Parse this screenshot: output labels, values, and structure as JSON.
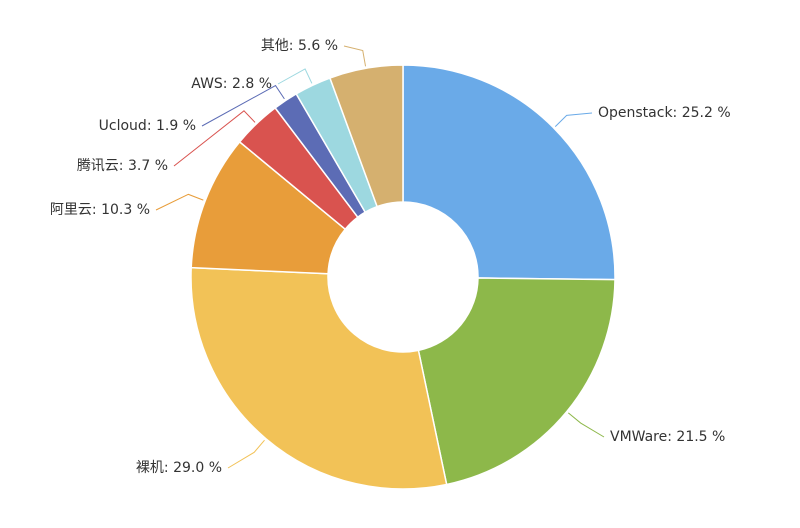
{
  "chart_data": {
    "type": "pie",
    "values": [
      25.2,
      21.5,
      29.0,
      10.3,
      3.7,
      1.9,
      2.8,
      5.6
    ],
    "value_labels": [
      "Openstack: 25.2 %",
      "VMWare: 21.5 %",
      "裸机: 29.0 %",
      "阿里云: 10.3 %",
      "腾讯云: 3.7 %",
      "Ucloud: 1.9 %",
      "AWS: 2.8 %",
      "其他: 5.6 %"
    ],
    "colors": [
      "#6aaae8",
      "#8db84a",
      "#f2c257",
      "#e89d3a",
      "#d9534f",
      "#5c6cb5",
      "#9dd8e0",
      "#d5b06f"
    ]
  }
}
